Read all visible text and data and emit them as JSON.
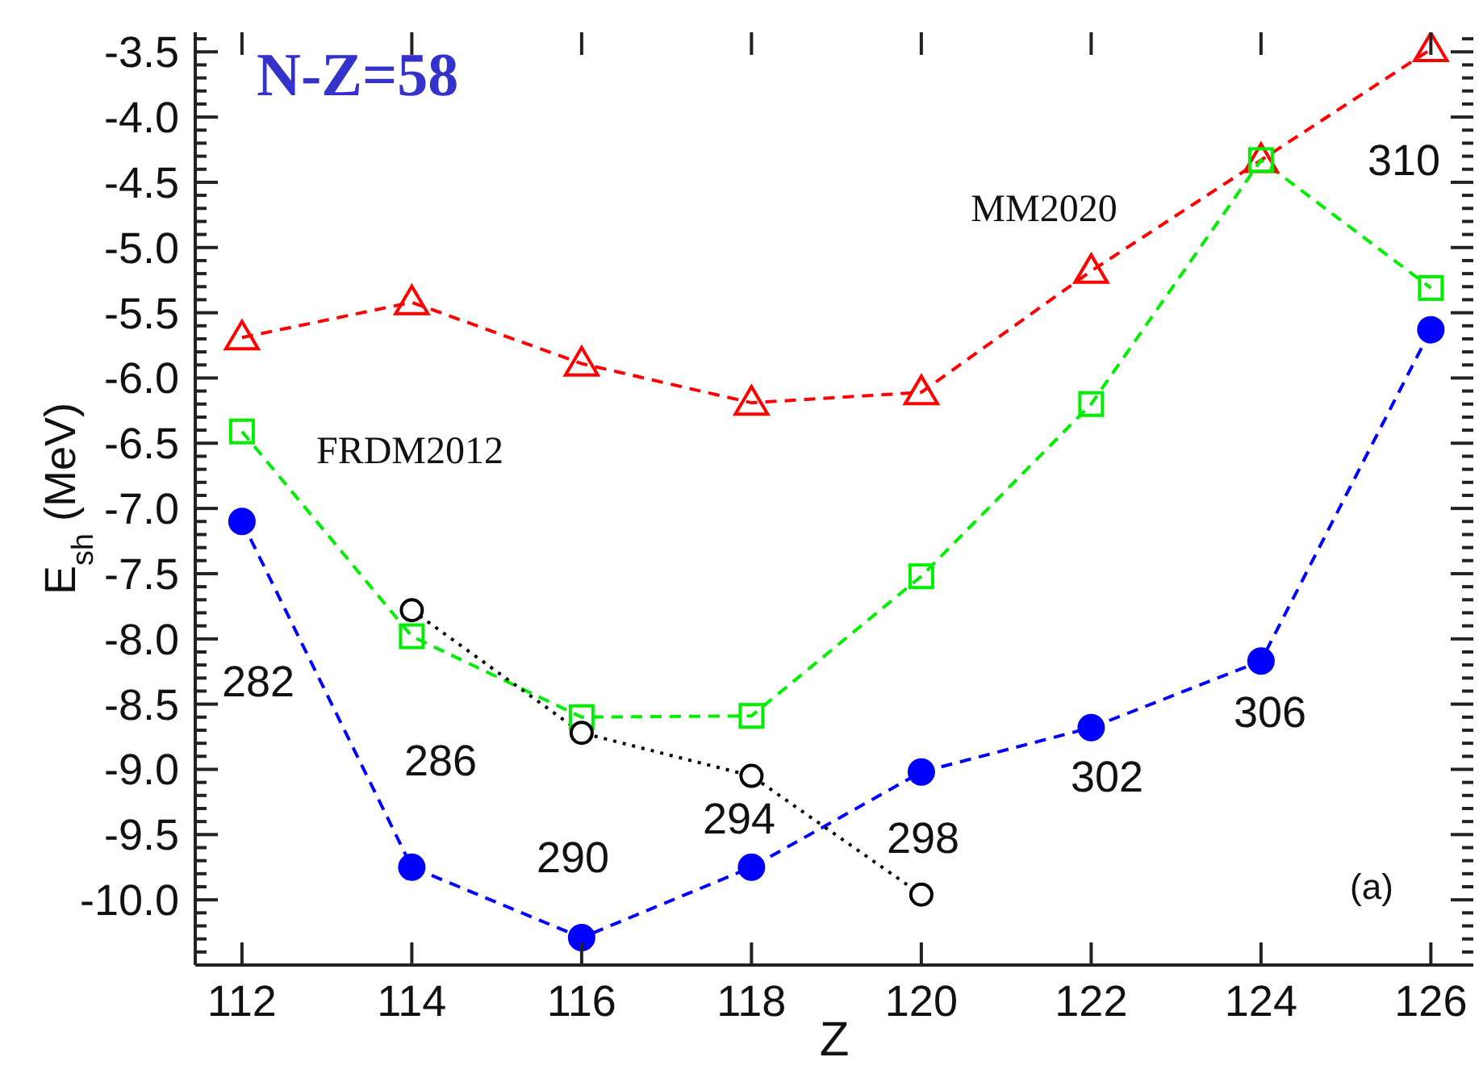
{
  "chart_data": {
    "type": "line",
    "title": "N-Z=58",
    "xlabel": "Z",
    "ylabel": "E$_{sh}$ (MeV)",
    "x": [
      112,
      114,
      116,
      118,
      120,
      122,
      124,
      126
    ],
    "xlim": [
      111.45,
      126.5
    ],
    "xticks": [
      112,
      114,
      116,
      118,
      120,
      122,
      124,
      126
    ],
    "ylim": [
      -10.5,
      -3.35
    ],
    "yticks": [
      {
        "value": -3.4,
        "label": null
      },
      {
        "value": -3.5,
        "label": "-3.5"
      },
      {
        "value": -3.6,
        "label": null
      },
      {
        "value": -3.7,
        "label": null
      },
      {
        "value": -3.8,
        "label": null
      },
      {
        "value": -3.9,
        "label": null
      },
      {
        "value": -4,
        "label": "-4.0"
      },
      {
        "value": -4.1,
        "label": null
      },
      {
        "value": -4.2,
        "label": null
      },
      {
        "value": -4.3,
        "label": null
      },
      {
        "value": -4.4,
        "label": null
      },
      {
        "value": -4.5,
        "label": "-4.5"
      },
      {
        "value": -4.6,
        "label": null
      },
      {
        "value": -4.7,
        "label": null
      },
      {
        "value": -4.8,
        "label": null
      },
      {
        "value": -4.9,
        "label": null
      },
      {
        "value": -5,
        "label": "-5.0"
      },
      {
        "value": -5.1,
        "label": null
      },
      {
        "value": -5.2,
        "label": null
      },
      {
        "value": -5.3,
        "label": null
      },
      {
        "value": -5.4,
        "label": null
      },
      {
        "value": -5.5,
        "label": "-5.5"
      },
      {
        "value": -5.6,
        "label": null
      },
      {
        "value": -5.7,
        "label": null
      },
      {
        "value": -5.8,
        "label": null
      },
      {
        "value": -5.9,
        "label": null
      },
      {
        "value": -6,
        "label": "-6.0"
      },
      {
        "value": -6.1,
        "label": null
      },
      {
        "value": -6.2,
        "label": null
      },
      {
        "value": -6.3,
        "label": null
      },
      {
        "value": -6.4,
        "label": null
      },
      {
        "value": -6.5,
        "label": "-6.5"
      },
      {
        "value": -6.6,
        "label": null
      },
      {
        "value": -6.7,
        "label": null
      },
      {
        "value": -6.8,
        "label": null
      },
      {
        "value": -6.9,
        "label": null
      },
      {
        "value": -7,
        "label": "-7.0"
      },
      {
        "value": -7.1,
        "label": null
      },
      {
        "value": -7.2,
        "label": null
      },
      {
        "value": -7.3,
        "label": null
      },
      {
        "value": -7.4,
        "label": null
      },
      {
        "value": -7.5,
        "label": "-7.5"
      },
      {
        "value": -7.6,
        "label": null
      },
      {
        "value": -7.7,
        "label": null
      },
      {
        "value": -7.8,
        "label": null
      },
      {
        "value": -7.9,
        "label": null
      },
      {
        "value": -8,
        "label": "-8.0"
      },
      {
        "value": -8.1,
        "label": null
      },
      {
        "value": -8.2,
        "label": null
      },
      {
        "value": -8.3,
        "label": null
      },
      {
        "value": -8.4,
        "label": null
      },
      {
        "value": -8.5,
        "label": "-8.5"
      },
      {
        "value": -8.6,
        "label": null
      },
      {
        "value": -8.7,
        "label": null
      },
      {
        "value": -8.8,
        "label": null
      },
      {
        "value": -8.9,
        "label": null
      },
      {
        "value": -9,
        "label": "-9.0"
      },
      {
        "value": -9.1,
        "label": null
      },
      {
        "value": -9.2,
        "label": null
      },
      {
        "value": -9.3,
        "label": null
      },
      {
        "value": -9.4,
        "label": null
      },
      {
        "value": -9.5,
        "label": "-9.5"
      },
      {
        "value": -9.6,
        "label": null
      },
      {
        "value": -9.7,
        "label": null
      },
      {
        "value": -9.8,
        "label": null
      },
      {
        "value": -9.9,
        "label": null
      },
      {
        "value": -10,
        "label": "-10.0"
      },
      {
        "value": -10.1,
        "label": null
      },
      {
        "value": -10.2,
        "label": null
      },
      {
        "value": -10.3,
        "label": null
      },
      {
        "value": -10.4,
        "label": null
      }
    ],
    "series": [
      {
        "name": "MM2020",
        "color": "#ff0000",
        "marker": "triangle",
        "line_style": "dashed",
        "values": [
          -5.69,
          -5.42,
          -5.89,
          -6.19,
          -6.11,
          -5.18,
          -4.33,
          -3.48
        ]
      },
      {
        "name": "FRDM2012",
        "color": "#00ee00",
        "marker": "square",
        "line_style": "dashed",
        "values": [
          -6.41,
          -7.98,
          -8.6,
          -8.59,
          -7.52,
          -6.2,
          -4.33,
          -5.31
        ]
      },
      {
        "color": "#0000ff",
        "marker": "circle",
        "line_style": "dashed",
        "values": [
          -7.1,
          -9.75,
          -10.29,
          -9.75,
          -9.02,
          -8.68,
          -8.17,
          -5.63
        ]
      },
      {
        "color": "#000000",
        "marker": "circle",
        "line_style": "dotted",
        "x": [
          114,
          116,
          118,
          120
        ],
        "values": [
          -7.78,
          -8.72,
          -9.05,
          -9.96
        ]
      }
    ],
    "annotations": [
      "282",
      "286",
      "290",
      "294",
      "298",
      "302",
      "306",
      "310",
      "(a)"
    ]
  }
}
